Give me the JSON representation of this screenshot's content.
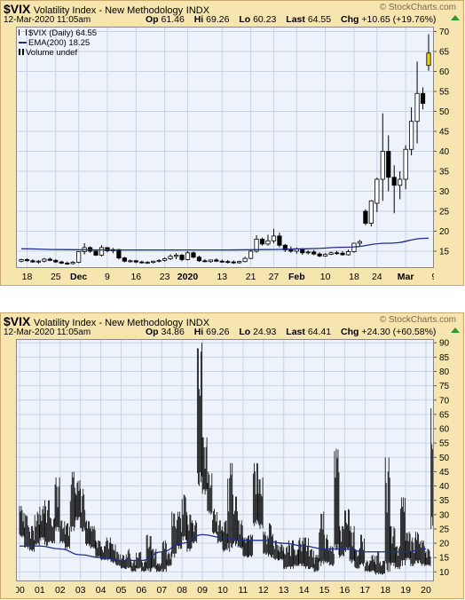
{
  "panels": [
    {
      "symbol": "$VIX",
      "name": "Volatility Index - New Methodology",
      "exchange": "INDX",
      "brand": "© StockCharts.com",
      "datetime": "12-Mar-2020 11:05am",
      "quote": {
        "op_label": "Op",
        "op": "61.46",
        "hi_label": "Hi",
        "hi": "69.26",
        "lo_label": "Lo",
        "lo": "60.23",
        "last_label": "Last",
        "last": "64.55",
        "chg_label": "Chg",
        "chg": "+10.65 (+19.76%)"
      },
      "legend": [
        "$VIX (Daily) 64.55",
        "EMA(200) 18.25",
        "Volume undef"
      ],
      "colors": {
        "up": "#000000",
        "down": "#000000",
        "ema": "#1f2f8a",
        "last_bar": "#e8d000",
        "plot_bg": "#eef3fb",
        "grid": "#c9d3e3"
      }
    },
    {
      "symbol": "$VIX",
      "name": "Volatility Index - New Methodology",
      "exchange": "INDX",
      "brand": "© StockCharts.com",
      "datetime": "12-Mar-2020 11:05am",
      "quote": {
        "op_label": "Op",
        "op": "34.86",
        "hi_label": "Hi",
        "hi": "69.26",
        "lo_label": "Lo",
        "lo": "24.93",
        "last_label": "Last",
        "last": "64.41",
        "chg_label": "Chg",
        "chg": "+24.30 (+60.58%)"
      },
      "legend": [],
      "colors": {
        "up": "#000000",
        "down": "#000000",
        "ema": "#1f2f8a",
        "last_bar": "#e8d000",
        "plot_bg": "#eef3fb",
        "grid": "#c9d3e3"
      }
    }
  ],
  "chart_data": [
    {
      "type": "candlestick",
      "title": "$VIX (Daily)",
      "x_tick_labels": [
        "18",
        "25",
        "Dec",
        "9",
        "16",
        "23",
        "2020",
        "13",
        "21",
        "27",
        "Feb",
        "10",
        "18",
        "24",
        "Mar",
        "9"
      ],
      "x_tick_index": [
        1,
        6,
        10,
        15,
        20,
        25,
        29,
        35,
        40,
        44,
        48,
        53,
        58,
        62,
        67,
        72
      ],
      "y_ticks": [
        15,
        20,
        25,
        30,
        35,
        40,
        45,
        50,
        55,
        60,
        65,
        70
      ],
      "ylim": [
        11,
        71
      ],
      "series": [
        {
          "name": "$VIX (Daily)",
          "ohlc": [
            [
              12.5,
              13.1,
              12.2,
              12.9
            ],
            [
              12.9,
              13.2,
              12.4,
              12.6
            ],
            [
              12.6,
              13.0,
              12.1,
              12.3
            ],
            [
              12.3,
              12.8,
              11.9,
              12.5
            ],
            [
              12.5,
              13.3,
              12.2,
              13.0
            ],
            [
              13.0,
              13.4,
              12.5,
              12.7
            ],
            [
              12.7,
              13.0,
              12.1,
              12.3
            ],
            [
              12.3,
              12.6,
              11.8,
              12.0
            ],
            [
              12.0,
              12.4,
              11.6,
              11.9
            ],
            [
              11.9,
              12.5,
              11.7,
              12.2
            ],
            [
              12.2,
              15.0,
              12.0,
              14.9
            ],
            [
              14.9,
              17.0,
              14.2,
              15.9
            ],
            [
              15.9,
              16.2,
              14.6,
              15.0
            ],
            [
              15.0,
              15.4,
              13.8,
              14.0
            ],
            [
              14.0,
              16.5,
              13.7,
              15.9
            ],
            [
              15.9,
              16.0,
              14.7,
              15.1
            ],
            [
              15.1,
              15.8,
              14.5,
              15.4
            ],
            [
              15.4,
              15.6,
              12.9,
              13.3
            ],
            [
              13.3,
              13.6,
              12.2,
              12.5
            ],
            [
              12.5,
              12.9,
              12.1,
              12.6
            ],
            [
              12.6,
              12.8,
              12.0,
              12.3
            ],
            [
              12.3,
              12.6,
              11.9,
              12.1
            ],
            [
              12.1,
              12.5,
              11.8,
              12.2
            ],
            [
              12.2,
              12.6,
              11.9,
              12.5
            ],
            [
              12.5,
              13.0,
              12.2,
              12.7
            ],
            [
              12.7,
              13.4,
              12.4,
              13.1
            ],
            [
              13.1,
              14.2,
              12.8,
              13.7
            ],
            [
              13.7,
              14.5,
              13.0,
              14.0
            ],
            [
              14.0,
              14.3,
              12.5,
              12.9
            ],
            [
              12.9,
              15.0,
              12.7,
              14.6
            ],
            [
              14.6,
              14.9,
              13.2,
              13.5
            ],
            [
              13.5,
              13.9,
              12.3,
              12.6
            ],
            [
              12.6,
              13.0,
              12.2,
              12.4
            ],
            [
              12.4,
              12.9,
              12.1,
              12.8
            ],
            [
              12.8,
              13.2,
              12.3,
              12.5
            ],
            [
              12.5,
              12.9,
              12.1,
              12.4
            ],
            [
              12.4,
              12.8,
              11.9,
              12.3
            ],
            [
              12.3,
              12.7,
              11.8,
              12.1
            ],
            [
              12.1,
              12.6,
              11.9,
              12.4
            ],
            [
              12.4,
              13.6,
              12.2,
              13.2
            ],
            [
              13.2,
              15.3,
              13.0,
              15.0
            ],
            [
              15.0,
              19.0,
              14.6,
              18.0
            ],
            [
              18.0,
              18.4,
              16.4,
              16.8
            ],
            [
              16.8,
              19.1,
              16.4,
              17.6
            ],
            [
              17.6,
              20.6,
              17.0,
              18.8
            ],
            [
              18.8,
              19.6,
              16.0,
              16.5
            ],
            [
              16.5,
              16.8,
              14.8,
              15.3
            ],
            [
              15.3,
              16.2,
              14.6,
              15.0
            ],
            [
              15.0,
              15.9,
              14.4,
              15.5
            ],
            [
              15.5,
              15.8,
              14.1,
              14.6
            ],
            [
              14.6,
              15.2,
              14.2,
              14.8
            ],
            [
              14.8,
              15.3,
              14.0,
              14.3
            ],
            [
              14.3,
              14.7,
              13.5,
              13.8
            ],
            [
              13.8,
              14.5,
              13.6,
              14.2
            ],
            [
              14.2,
              14.9,
              14.0,
              14.6
            ],
            [
              14.6,
              15.1,
              14.1,
              14.5
            ],
            [
              14.5,
              15.0,
              13.9,
              14.1
            ],
            [
              14.1,
              15.4,
              13.9,
              14.9
            ],
            [
              14.9,
              17.1,
              14.6,
              17.0
            ],
            [
              17.0,
              17.8,
              16.3,
              17.4
            ],
            [
              25.0,
              25.5,
              21.5,
              22.0
            ],
            [
              22.0,
              27.8,
              21.2,
              27.6
            ],
            [
              27.0,
              33.4,
              24.8,
              33.0
            ],
            [
              33.0,
              49.5,
              27.6,
              40.0
            ],
            [
              40.0,
              44.0,
              30.0,
              33.5
            ],
            [
              33.5,
              36.5,
              24.5,
              31.5
            ],
            [
              31.5,
              35.0,
              28.0,
              33.0
            ],
            [
              33.0,
              41.5,
              30.5,
              40.5
            ],
            [
              40.5,
              51.0,
              39.0,
              47.5
            ],
            [
              47.5,
              62.5,
              42.0,
              54.5
            ],
            [
              54.5,
              56.0,
              50.5,
              52.0
            ],
            [
              61.5,
              69.3,
              60.2,
              64.6
            ]
          ]
        },
        {
          "name": "EMA(200)",
          "values": [
            15.6,
            15.4,
            15.3,
            15.3,
            15.3,
            15.3,
            15.4,
            15.6,
            16.0,
            17.0,
            18.25
          ]
        }
      ]
    },
    {
      "type": "bar",
      "title": "$VIX",
      "x_tick_labels": [
        "00",
        "01",
        "02",
        "03",
        "04",
        "05",
        "06",
        "07",
        "08",
        "09",
        "10",
        "11",
        "12",
        "13",
        "14",
        "15",
        "16",
        "17",
        "18",
        "19",
        "20"
      ],
      "x": [
        2000,
        2001,
        2002,
        2003,
        2004,
        2005,
        2006,
        2007,
        2008,
        2009,
        2010,
        2011,
        2012,
        2013,
        2014,
        2015,
        2016,
        2017,
        2018,
        2019,
        2020
      ],
      "y_ticks": [
        10,
        15,
        20,
        25,
        30,
        35,
        40,
        45,
        50,
        55,
        60,
        65,
        70,
        75,
        80,
        85,
        90
      ],
      "ylim": [
        7,
        91
      ],
      "series": [
        {
          "name": "$VIX",
          "points": [
            [
              2000.0,
              22,
              33
            ],
            [
              2000.25,
              18,
              30
            ],
            [
              2000.5,
              17,
              26
            ],
            [
              2000.75,
              19,
              31
            ],
            [
              2001.0,
              21,
              33
            ],
            [
              2001.25,
              19,
              35
            ],
            [
              2001.5,
              20,
              29
            ],
            [
              2001.75,
              24,
              43
            ],
            [
              2002.0,
              20,
              28
            ],
            [
              2002.25,
              18,
              27
            ],
            [
              2002.5,
              24,
              45
            ],
            [
              2002.75,
              28,
              42
            ],
            [
              2003.0,
              24,
              39
            ],
            [
              2003.25,
              19,
              28
            ],
            [
              2003.5,
              18,
              26
            ],
            [
              2003.75,
              15,
              21
            ],
            [
              2004.0,
              14,
              19
            ],
            [
              2004.25,
              14,
              22
            ],
            [
              2004.5,
              13,
              20
            ],
            [
              2004.75,
              12,
              17
            ],
            [
              2005.0,
              11,
              16
            ],
            [
              2005.25,
              11,
              18
            ],
            [
              2005.5,
              10,
              14
            ],
            [
              2005.75,
              11,
              17
            ],
            [
              2006.0,
              10,
              14
            ],
            [
              2006.25,
              10,
              23
            ],
            [
              2006.5,
              11,
              18
            ],
            [
              2006.75,
              10,
              13
            ],
            [
              2007.0,
              10,
              21
            ],
            [
              2007.25,
              12,
              17
            ],
            [
              2007.5,
              15,
              31
            ],
            [
              2007.75,
              18,
              31
            ],
            [
              2008.0,
              21,
              37
            ],
            [
              2008.25,
              17,
              30
            ],
            [
              2008.5,
              20,
              28
            ],
            [
              2008.75,
              40,
              90
            ],
            [
              2009.0,
              37,
              57
            ],
            [
              2009.25,
              30,
              45
            ],
            [
              2009.5,
              23,
              32
            ],
            [
              2009.75,
              20,
              28
            ],
            [
              2010.0,
              17,
              28
            ],
            [
              2010.25,
              17,
              48
            ],
            [
              2010.5,
              19,
              37
            ],
            [
              2010.75,
              18,
              28
            ],
            [
              2011.0,
              15,
              22
            ],
            [
              2011.25,
              15,
              23
            ],
            [
              2011.5,
              26,
              48
            ],
            [
              2011.75,
              25,
              43
            ],
            [
              2012.0,
              16,
              24
            ],
            [
              2012.25,
              15,
              27
            ],
            [
              2012.5,
              14,
              21
            ],
            [
              2012.75,
              14,
              20
            ],
            [
              2013.0,
              11,
              19
            ],
            [
              2013.25,
              11,
              21
            ],
            [
              2013.5,
              12,
              18
            ],
            [
              2013.75,
              12,
              22
            ],
            [
              2014.0,
              11,
              22
            ],
            [
              2014.25,
              11,
              18
            ],
            [
              2014.5,
              10,
              16
            ],
            [
              2014.75,
              12,
              31
            ],
            [
              2015.0,
              13,
              23
            ],
            [
              2015.25,
              12,
              19
            ],
            [
              2015.5,
              16,
              53
            ],
            [
              2015.75,
              15,
              26
            ],
            [
              2016.0,
              17,
              32
            ],
            [
              2016.25,
              13,
              26
            ],
            [
              2016.5,
              11,
              18
            ],
            [
              2016.75,
              12,
              23
            ],
            [
              2017.0,
              10,
              14
            ],
            [
              2017.25,
              10,
              16
            ],
            [
              2017.5,
              9,
              17
            ],
            [
              2017.75,
              9,
              14
            ],
            [
              2018.0,
              10,
              50
            ],
            [
              2018.25,
              12,
              26
            ],
            [
              2018.5,
              11,
              19
            ],
            [
              2018.75,
              12,
              36
            ],
            [
              2019.0,
              14,
              24
            ],
            [
              2019.25,
              12,
              22
            ],
            [
              2019.5,
              13,
              24
            ],
            [
              2019.75,
              12,
              21
            ],
            [
              2020.0,
              12,
              18
            ],
            [
              2020.25,
              25,
              69
            ]
          ]
        },
        {
          "name": "EMA(200)",
          "values": [
            19,
            19,
            18,
            16,
            15,
            14,
            14,
            17,
            20,
            23,
            22,
            21,
            21,
            20,
            19,
            18,
            18,
            17,
            17,
            17,
            18
          ]
        }
      ]
    }
  ]
}
